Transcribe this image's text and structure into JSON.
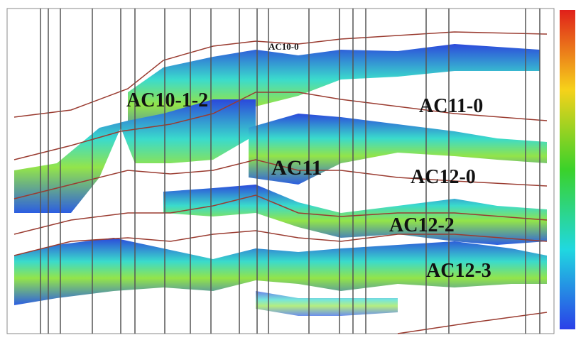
{
  "labels": [
    "AC10-0",
    "AC10-1-2",
    "AC11-0",
    "AC11",
    "AC12-0",
    "AC12-2",
    "AC12-3"
  ]
}
